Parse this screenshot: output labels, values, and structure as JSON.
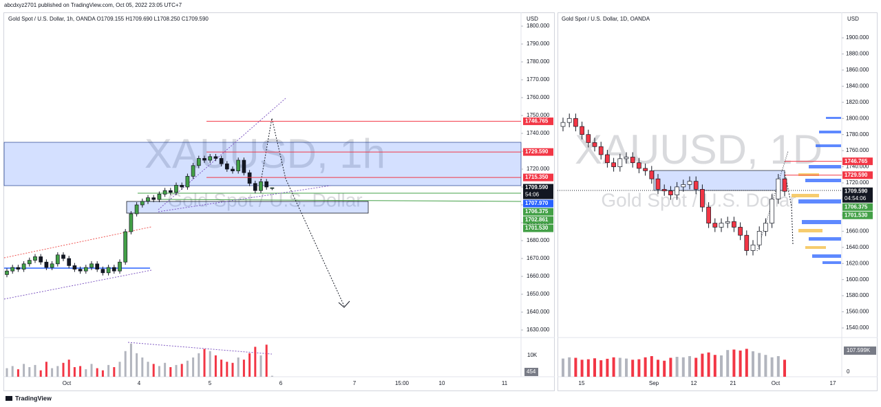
{
  "header": {
    "publisher": "abcdxyz2701 published on TradingView.com, Oct 05, 2022 23:05 UTC+7",
    "footer_logo": "TradingView"
  },
  "panels": [
    {
      "title": "Gold Spot / U.S. Dollar, 1h, OANDA  O1709.155 H1709.690 L1708.250 C1709.590",
      "watermark": "XAUUSD, 1h",
      "watermark_sub": "Gold Spot / U.S. Dollar",
      "currency": "USD",
      "ylim": [
        1626.15,
        1807.7
      ],
      "yticks": [
        {
          "value": 1630,
          "label": "1630.000"
        },
        {
          "value": 1640,
          "label": "1640.000"
        },
        {
          "value": 1650,
          "label": "1650.000"
        },
        {
          "value": 1660,
          "label": "1660.000"
        },
        {
          "value": 1670,
          "label": "1670.000"
        },
        {
          "value": 1680,
          "label": "1680.000"
        },
        {
          "value": 1690,
          "label": "1690.000"
        },
        {
          "value": 1700,
          "label": "1700.000"
        },
        {
          "value": 1710,
          "label": "1710.000"
        },
        {
          "value": 1720,
          "label": "1720.000"
        },
        {
          "value": 1730,
          "label": "1730.000"
        },
        {
          "value": 1740,
          "label": "1740.000"
        },
        {
          "value": 1750,
          "label": "1750.000"
        },
        {
          "value": 1760,
          "label": "1760.000"
        },
        {
          "value": 1770,
          "label": "1770.000"
        },
        {
          "value": 1780,
          "label": "1780.000"
        },
        {
          "value": 1790,
          "label": "1790.000"
        },
        {
          "value": 1800,
          "label": "1800.000"
        }
      ],
      "xlabels": [
        "Oct",
        "4",
        "5",
        "6",
        "7",
        "15:00",
        "10",
        "11"
      ],
      "price_tags": [
        {
          "value": 1746.765,
          "label": "1746.765",
          "color": "#f23645"
        },
        {
          "value": 1729.59,
          "label": "1729.590",
          "color": "#f23645"
        },
        {
          "value": 1715.35,
          "label": "1715.350",
          "color": "#f23645"
        },
        {
          "value": 1709.59,
          "label": "1709.590",
          "color": "#131722",
          "countdown": "54:06"
        },
        {
          "value": 1707.97,
          "label": "1707.970",
          "color": "#2962ff"
        },
        {
          "value": 1706.375,
          "label": "1706.375",
          "color": "#43a047"
        },
        {
          "value": 1702.861,
          "label": "1702.861",
          "color": "#43a047"
        },
        {
          "value": 1701.53,
          "label": "1701.530",
          "color": "#43a047"
        }
      ],
      "vlim": [
        0,
        18000
      ],
      "vticks": [
        {
          "value": 10000,
          "label": "10K"
        }
      ],
      "volume_tag": 454,
      "candles": {
        "open": [
          1661,
          1663,
          1665,
          1664,
          1667,
          1669,
          1671,
          1668,
          1665,
          1667,
          1672,
          1670,
          1666,
          1664,
          1663,
          1665,
          1667,
          1664,
          1662,
          1665,
          1663,
          1668,
          1685,
          1695,
          1700,
          1702,
          1704,
          1703,
          1706,
          1708,
          1707,
          1711,
          1710,
          1716,
          1722,
          1726,
          1725,
          1727,
          1726,
          1723,
          1720,
          1719,
          1725,
          1718,
          1712,
          1708,
          1713,
          1709.155
        ],
        "high": [
          1664.5,
          1666.5,
          1666.5,
          1668.5,
          1670.5,
          1672.5,
          1672.5,
          1669.5,
          1668.5,
          1673.5,
          1673.5,
          1671.5,
          1667.5,
          1665.5,
          1666.5,
          1668.5,
          1668.5,
          1665.5,
          1666.5,
          1666.5,
          1669.5,
          1686.5,
          1696.5,
          1701.5,
          1703.5,
          1705.5,
          1705.5,
          1707.5,
          1709.5,
          1709.5,
          1712.5,
          1712.5,
          1717.5,
          1723.5,
          1727.5,
          1727.5,
          1728.5,
          1728.5,
          1727.5,
          1724.5,
          1721.5,
          1726.5,
          1726.5,
          1719.5,
          1713.5,
          1714.5,
          1714.5,
          1709.69
        ],
        "low": [
          1659.5,
          1661.5,
          1662.5,
          1662.5,
          1665.5,
          1667.5,
          1666.5,
          1663.5,
          1663.5,
          1665.5,
          1668.5,
          1664.5,
          1662.5,
          1661.5,
          1661.5,
          1663.5,
          1662.5,
          1660.5,
          1660.5,
          1661.5,
          1661.5,
          1666.5,
          1683.5,
          1693.5,
          1698.5,
          1700.5,
          1701.5,
          1701.5,
          1704.5,
          1705.5,
          1705.5,
          1708.5,
          1708.5,
          1714.5,
          1720.5,
          1723.5,
          1723.5,
          1724.5,
          1721.5,
          1718.5,
          1717.5,
          1717.5,
          1716.5,
          1710.5,
          1706.5,
          1706.5,
          1708.5,
          1708.25
        ],
        "close": [
          1663,
          1665,
          1664,
          1667,
          1669,
          1671,
          1668,
          1665,
          1667,
          1672,
          1670,
          1666,
          1664,
          1663,
          1665,
          1667,
          1664,
          1662,
          1665,
          1663,
          1668,
          1685,
          1695,
          1700,
          1702,
          1704,
          1703,
          1706,
          1708,
          1707,
          1711,
          1710,
          1716,
          1722,
          1726,
          1725,
          1727,
          1726,
          1723,
          1720,
          1719,
          1725,
          1718,
          1712,
          1708,
          1713,
          1710,
          1709.59
        ]
      },
      "volume": [
        4000,
        5000,
        3500,
        6000,
        4500,
        5500,
        3000,
        7000,
        4000,
        5000,
        6500,
        8000,
        4500,
        5000,
        3500,
        6000,
        4000,
        3000,
        5500,
        4500,
        7000,
        12000,
        15500,
        11000,
        9000,
        7000,
        6000,
        5000,
        6500,
        4500,
        5500,
        6000,
        7500,
        9000,
        11000,
        13000,
        12000,
        10000,
        8000,
        7000,
        6500,
        9000,
        8000,
        11000,
        14000,
        10000,
        15000,
        454
      ]
    },
    {
      "title": "Gold Spot / U.S. Dollar, 1D, OANDA",
      "watermark": "XAUUSD, 1D",
      "watermark_sub": "Gold Spot / U.S. Dollar",
      "currency": "USD",
      "ylim": [
        1528.9,
        1931.6
      ],
      "yticks": [
        {
          "value": 1540,
          "label": "1540.000"
        },
        {
          "value": 1560,
          "label": "1560.000"
        },
        {
          "value": 1580,
          "label": "1580.000"
        },
        {
          "value": 1600,
          "label": "1600.000"
        },
        {
          "value": 1620,
          "label": "1620.000"
        },
        {
          "value": 1640,
          "label": "1640.000"
        },
        {
          "value": 1660,
          "label": "1660.000"
        },
        {
          "value": 1680,
          "label": "1680.000"
        },
        {
          "value": 1700,
          "label": "1700.000"
        },
        {
          "value": 1720,
          "label": "1720.000"
        },
        {
          "value": 1740,
          "label": "1740.000"
        },
        {
          "value": 1760,
          "label": "1760.000"
        },
        {
          "value": 1780,
          "label": "1780.000"
        },
        {
          "value": 1800,
          "label": "1800.000"
        },
        {
          "value": 1820,
          "label": "1820.000"
        },
        {
          "value": 1840,
          "label": "1840.000"
        },
        {
          "value": 1860,
          "label": "1860.000"
        },
        {
          "value": 1880,
          "label": "1880.000"
        },
        {
          "value": 1900,
          "label": "1900.000"
        }
      ],
      "xlabels": [
        "15",
        "Sep",
        "12",
        "21",
        "Oct",
        "17"
      ],
      "price_tags": [
        {
          "value": 1746.765,
          "label": "1746.765",
          "color": "#f23645"
        },
        {
          "value": 1729.59,
          "label": "1729.590",
          "color": "#f23645"
        },
        {
          "value": 1709.59,
          "label": "1709.590",
          "color": "#131722",
          "countdown": "04:54:06"
        },
        {
          "value": 1706.375,
          "label": "1706.375",
          "color": "#43a047"
        },
        {
          "value": 1701.53,
          "label": "1701.530",
          "color": "#43a047"
        }
      ],
      "vlim": [
        0,
        158600
      ],
      "vticks": [
        {
          "value": 107599,
          "label": "107.599K"
        },
        0
      ],
      "candles": {
        "open": [
          1790,
          1795,
          1800,
          1790,
          1780,
          1770,
          1765,
          1755,
          1745,
          1740,
          1750,
          1752,
          1745,
          1738,
          1735,
          1725,
          1712,
          1710,
          1705,
          1715,
          1718,
          1722,
          1712,
          1690,
          1670,
          1665,
          1670,
          1672,
          1665,
          1655,
          1636,
          1643,
          1660,
          1670,
          1700,
          1725
        ],
        "high": [
          1801,
          1806,
          1806,
          1796,
          1786,
          1776,
          1771,
          1761,
          1751,
          1756,
          1758,
          1758,
          1751,
          1744,
          1741,
          1731,
          1718,
          1716,
          1721,
          1724,
          1728,
          1728,
          1718,
          1696,
          1676,
          1676,
          1678,
          1678,
          1671,
          1661,
          1649,
          1666,
          1676,
          1706,
          1731,
          1731
        ],
        "low": [
          1784,
          1789,
          1784,
          1774,
          1764,
          1759,
          1749,
          1739,
          1734,
          1734,
          1744,
          1739,
          1732,
          1729,
          1719,
          1706,
          1704,
          1699,
          1699,
          1709,
          1712,
          1706,
          1684,
          1664,
          1659,
          1659,
          1664,
          1659,
          1649,
          1630,
          1630,
          1637,
          1654,
          1664,
          1694,
          1703.5
        ],
        "close": [
          1795,
          1800,
          1790,
          1780,
          1770,
          1765,
          1755,
          1745,
          1740,
          1750,
          1752,
          1745,
          1738,
          1735,
          1725,
          1712,
          1710,
          1705,
          1715,
          1718,
          1722,
          1712,
          1690,
          1670,
          1665,
          1670,
          1672,
          1665,
          1655,
          1636,
          1643,
          1660,
          1670,
          1700,
          1725,
          1709.59
        ]
      },
      "volume": [
        75000,
        80000,
        78000,
        70000,
        72000,
        76000,
        68000,
        74000,
        80000,
        78000,
        75000,
        70000,
        72000,
        80000,
        85000,
        70000,
        66000,
        78000,
        82000,
        80000,
        85000,
        78000,
        95000,
        100000,
        90000,
        88000,
        110000,
        112000,
        108000,
        115000,
        105000,
        98000,
        90000,
        80000,
        85000,
        70000
      ]
    }
  ]
}
